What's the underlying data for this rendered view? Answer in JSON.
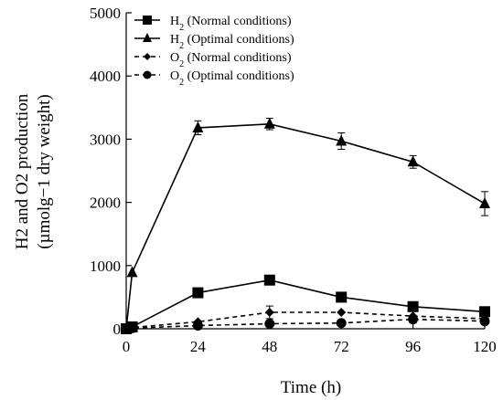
{
  "chart_data": {
    "type": "line",
    "xlabel": "Time (h)",
    "ylabel_line1": "H2 and O2 production",
    "ylabel_line2": "(µmolg−1 dry weight)",
    "xlim": [
      0,
      120
    ],
    "ylim": [
      0,
      5000
    ],
    "x_ticks": [
      0,
      24,
      48,
      72,
      96,
      120
    ],
    "y_ticks": [
      0,
      1000,
      2000,
      3000,
      4000,
      5000
    ],
    "legend_position": "top-left",
    "series": [
      {
        "name": "H2 (Normal conditions)",
        "gas": "H",
        "condition": " (Normal conditions)",
        "marker": "square",
        "dash": "solid",
        "x": [
          0,
          2,
          24,
          48,
          72,
          96,
          120
        ],
        "y": [
          0,
          30,
          570,
          770,
          500,
          350,
          270
        ],
        "err": [
          0,
          0,
          0,
          40,
          0,
          0,
          0
        ]
      },
      {
        "name": "H2 (Optimal conditions)",
        "gas": "H",
        "condition": " (Optimal conditions)",
        "marker": "triangle",
        "dash": "solid",
        "x": [
          0,
          2,
          24,
          48,
          72,
          96,
          120
        ],
        "y": [
          0,
          890,
          3180,
          3240,
          2970,
          2640,
          1980
        ],
        "err": [
          0,
          0,
          110,
          90,
          130,
          100,
          190
        ]
      },
      {
        "name": "O2 (Normal conditions)",
        "gas": "O",
        "condition": " (Normal conditions)",
        "marker": "diamond",
        "dash": "dashed",
        "x": [
          0,
          2,
          24,
          48,
          72,
          96,
          120
        ],
        "y": [
          0,
          20,
          110,
          260,
          260,
          200,
          160
        ],
        "err": [
          0,
          0,
          0,
          100,
          0,
          0,
          0
        ]
      },
      {
        "name": "O2 (Optimal conditions)",
        "gas": "O",
        "condition": " (Optimal conditions)",
        "marker": "circle",
        "dash": "dashed",
        "x": [
          0,
          2,
          24,
          48,
          72,
          96,
          120
        ],
        "y": [
          0,
          10,
          50,
          80,
          90,
          150,
          120
        ],
        "err": [
          0,
          0,
          0,
          0,
          0,
          60,
          0
        ]
      }
    ]
  }
}
